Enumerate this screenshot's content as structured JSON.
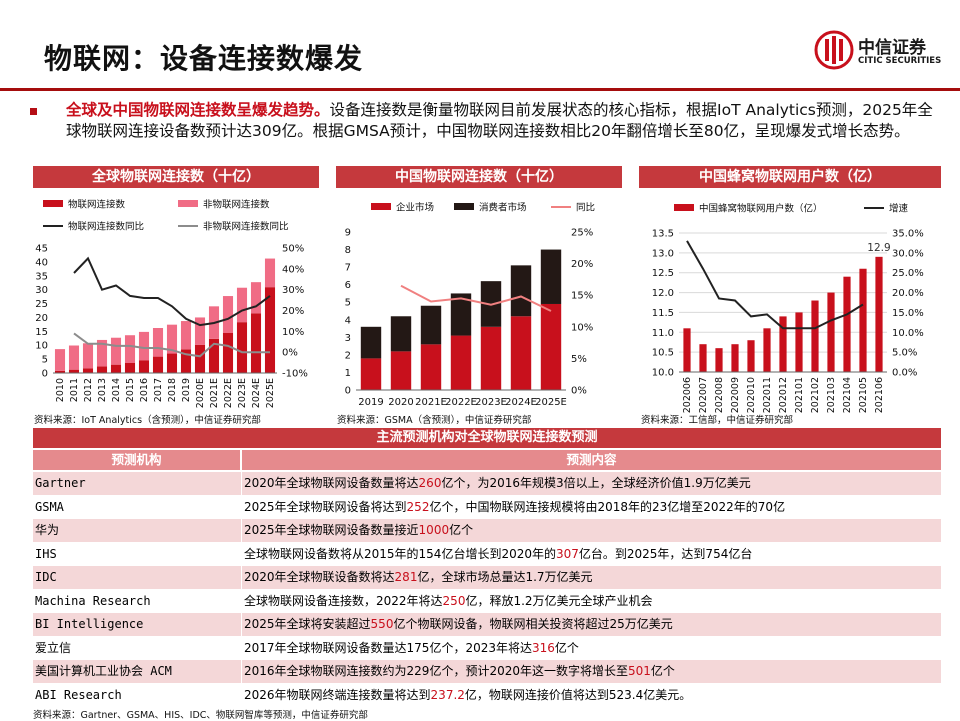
{
  "page": {
    "title": "物联网：设备连接数爆发",
    "logo_cn": "中信证券",
    "logo_en": "CITIC SECURITIES",
    "intro_highlight": "全球及中国物联网连接数呈爆发趋势。",
    "intro_text": "设备连接数是衡量物联网目前发展状态的核心指标，根据IoT Analytics预测，2025年全球物联网连接设备数预计达309亿。根据GMSA预计，中国物联网连接数相比20年翻倍增长至80亿，呈现爆发式增长态势。",
    "footer_source": "资料来源：Gartner、GSMA、HIS、IDC、物联网智库等预测，中信证券研究部"
  },
  "colors": {
    "accent": "#c5393d",
    "dark_red": "#c8101c",
    "pink": "#f06c85",
    "black_bar": "#231815",
    "gray": "#8c8c8c"
  },
  "chart_data": [
    {
      "type": "bar",
      "title": "全球物联网连接数（十亿）",
      "stacked": true,
      "categories": [
        "2010",
        "2011",
        "2012",
        "2013",
        "2014",
        "2015",
        "2016",
        "2017",
        "2018",
        "2019",
        "2020E",
        "2021E",
        "2022E",
        "2023E",
        "2024E",
        "2025E"
      ],
      "series": [
        {
          "name": "物联网连接数",
          "values": [
            0.8,
            1.2,
            1.7,
            2.4,
            3.0,
            3.6,
            4.6,
            5.9,
            7.0,
            8.5,
            10.1,
            12.3,
            14.4,
            18.3,
            21.5,
            30.9
          ],
          "color": "#c8101c",
          "axis": "left"
        },
        {
          "name": "非物联网连接数",
          "values": [
            7.8,
            8.7,
            9.0,
            9.5,
            9.7,
            10.0,
            10.2,
            10.3,
            10.4,
            10.2,
            9.9,
            11.7,
            13.3,
            12.4,
            11.2,
            10.3
          ],
          "color": "#f06c85",
          "axis": "left"
        },
        {
          "name": "物联网连接数同比",
          "values": [
            null,
            38,
            45,
            30,
            32,
            27,
            26,
            26,
            22,
            16,
            13,
            14,
            16,
            20,
            22,
            27
          ],
          "color": "#222222",
          "axis": "right",
          "kind": "line"
        },
        {
          "name": "非物联网连接数同比",
          "values": [
            null,
            9,
            4,
            4,
            3,
            3,
            2,
            2,
            1,
            -1,
            -2,
            4,
            3,
            0,
            0,
            0
          ],
          "color": "#8c8c8c",
          "axis": "right",
          "kind": "line"
        }
      ],
      "ylim": [
        0,
        45
      ],
      "yticks": [
        "0",
        "5",
        "10",
        "15",
        "20",
        "25",
        "30",
        "35",
        "40",
        "45"
      ],
      "y2lim": [
        -10,
        50
      ],
      "y2ticks": [
        "-10%",
        "0%",
        "10%",
        "20%",
        "30%",
        "40%",
        "50%"
      ],
      "legend": [
        "物联网连接数",
        "非物联网连接数",
        "物联网连接数同比",
        "非物联网连接数同比"
      ],
      "source": "资料来源：IoT Analytics（含预测），中信证券研究部"
    },
    {
      "type": "bar",
      "title": "中国物联网连接数（十亿）",
      "stacked": true,
      "categories": [
        "2019",
        "2020",
        "2021E",
        "2022E",
        "2023E",
        "2024E",
        "2025E"
      ],
      "series": [
        {
          "name": "企业市场",
          "values": [
            1.8,
            2.2,
            2.6,
            3.1,
            3.6,
            4.2,
            4.9
          ],
          "color": "#c8101c",
          "axis": "left"
        },
        {
          "name": "消费者市场",
          "values": [
            1.8,
            2.0,
            2.2,
            2.4,
            2.6,
            2.9,
            3.1
          ],
          "color": "#231815",
          "axis": "left"
        },
        {
          "name": "同比",
          "values": [
            null,
            16.5,
            14.0,
            14.5,
            13.5,
            14.8,
            12.5
          ],
          "color": "#f08080",
          "axis": "right",
          "kind": "line"
        }
      ],
      "ylim": [
        0,
        9
      ],
      "yticks": [
        "0",
        "1",
        "2",
        "3",
        "4",
        "5",
        "6",
        "7",
        "8",
        "9"
      ],
      "y2lim": [
        0,
        25
      ],
      "y2ticks": [
        "0%",
        "5%",
        "10%",
        "15%",
        "20%",
        "25%"
      ],
      "legend": [
        "企业市场",
        "消费者市场",
        "同比"
      ],
      "source": "资料来源：GSMA（含预测），中信证券研究部"
    },
    {
      "type": "bar",
      "title": "中国蜂窝物联网用户数（亿）",
      "categories": [
        "202006",
        "202007",
        "202008",
        "202009",
        "202010",
        "202011",
        "202012",
        "202101",
        "202102",
        "202103",
        "202104",
        "202105",
        "202106"
      ],
      "series": [
        {
          "name": "中国蜂窝物联网用户数（亿）",
          "values": [
            11.1,
            10.7,
            10.6,
            10.7,
            10.8,
            11.1,
            11.4,
            11.5,
            11.8,
            12.0,
            12.4,
            12.6,
            12.9
          ],
          "color": "#c8101c",
          "axis": "left"
        },
        {
          "name": "增速",
          "values": [
            33,
            26,
            18.5,
            18,
            14,
            14.5,
            11,
            11,
            11,
            13,
            14.5,
            17,
            null
          ],
          "color": "#222222",
          "axis": "right",
          "kind": "line"
        }
      ],
      "annotation": "12.9",
      "ylim": [
        10.0,
        13.5
      ],
      "yticks": [
        "10.0",
        "10.5",
        "11.0",
        "11.5",
        "12.0",
        "12.5",
        "13.0",
        "13.5"
      ],
      "y2lim": [
        0,
        35
      ],
      "y2ticks": [
        "0.0%",
        "5.0%",
        "10.0%",
        "15.0%",
        "20.0%",
        "25.0%",
        "30.0%",
        "35.0%"
      ],
      "legend": [
        "中国蜂窝物联网用户数（亿）",
        "增速"
      ],
      "source": "资料来源：工信部，中信证券研究部"
    }
  ],
  "table": {
    "title": "主流预测机构对全球物联网连接数预测",
    "col1": "预测机构",
    "col2": "预测内容",
    "rows": [
      {
        "org": "Gartner",
        "p1": "2020年全球物联网设备数量将达",
        "num": "260",
        "p2": "亿个，为2016年规模3倍以上，全球经济价值1.9万亿美元"
      },
      {
        "org": "GSMA",
        "p1": "2025年全球物联网设备将达到",
        "num": "252",
        "p2": "亿个，中国物联网连接规模将由2018年的23亿增至2022年的70亿"
      },
      {
        "org": "华为",
        "p1": "2025年全球物联网设备数量接近",
        "num": "1000",
        "p2": "亿个"
      },
      {
        "org": "IHS",
        "p1": "全球物联网设备数将从2015年的154亿台增长到2020年的",
        "num": "307",
        "p2": "亿台。到2025年，达到754亿台"
      },
      {
        "org": "IDC",
        "p1": "2020年全球物联设备数将达",
        "num": "281",
        "p2": "亿，全球市场总量达1.7万亿美元"
      },
      {
        "org": "Machina Research",
        "p1": "全球物联网设备连接数，2022年将达",
        "num": "250",
        "p2": "亿，释放1.2万亿美元全球产业机会"
      },
      {
        "org": "BI Intelligence",
        "p1": "2025年全球将安装超过",
        "num": "550",
        "p2": "亿个物联网设备，物联网相关投资将超过25万亿美元"
      },
      {
        "org": "爱立信",
        "p1": "2017年全球物联网设备数量达175亿个，2023年将达",
        "num": "316",
        "p2": "亿个"
      },
      {
        "org": "美国计算机工业协会 ACM",
        "p1": "2016年全球物联网连接数约为229亿个，预计2020年这一数字将增长至",
        "num": "501",
        "p2": "亿个"
      },
      {
        "org": "ABI Research",
        "p1": "2026年物联网终端连接数量将达到",
        "num": "237.2",
        "p2": "亿，物联网连接价值将达到523.4亿美元。"
      }
    ]
  }
}
